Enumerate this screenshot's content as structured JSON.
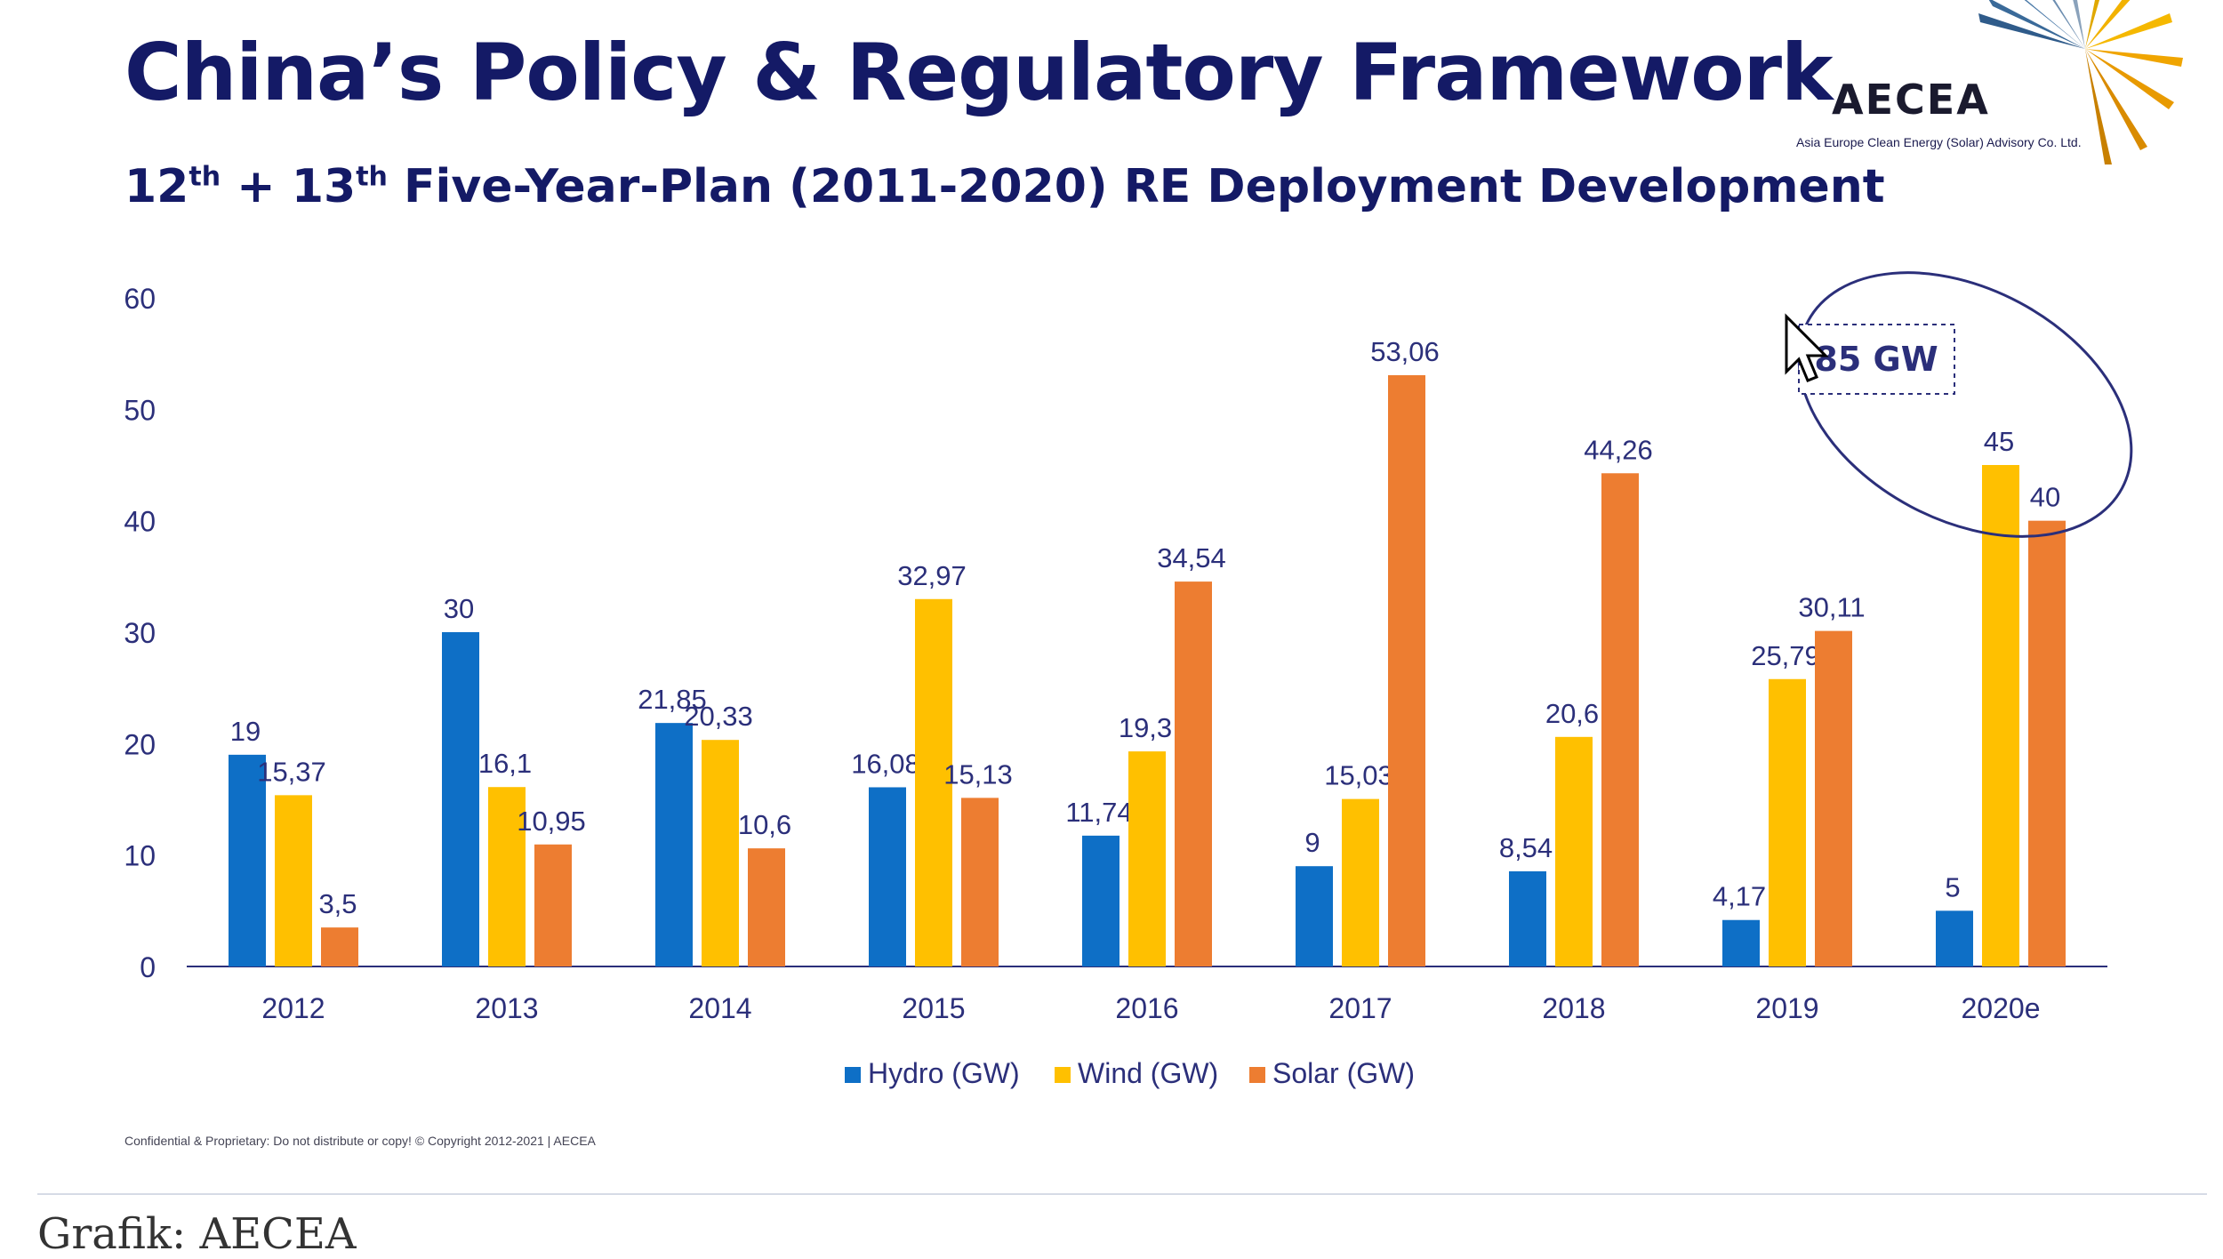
{
  "slide": {
    "title": "China’s Policy & Regulatory Framework",
    "subtitle_parts": [
      "12",
      "th",
      " + 13",
      "th",
      " Five-Year-Plan (2011-2020) RE Deployment Development"
    ],
    "logo_text": "AECEA",
    "logo_subtext": "Asia Europe Clean Energy (Solar) Advisory Co. Ltd.",
    "footer_note": "Confidential & Proprietary: Do not distribute or copy! © Copyright 2012-2021 | AECEA"
  },
  "caption": "Grafik: AECEA",
  "colors": {
    "hydro": "#0e6fc6",
    "wind": "#ffc000",
    "solar": "#ed7d31",
    "title": "#141a66",
    "annotation": "#2b2f7a"
  },
  "chart_data": {
    "type": "bar",
    "categories": [
      "2012",
      "2013",
      "2014",
      "2015",
      "2016",
      "2017",
      "2018",
      "2019",
      "2020e"
    ],
    "series": [
      {
        "name": "Hydro (GW)",
        "values": [
          19,
          30,
          21.85,
          16.08,
          11.74,
          9,
          8.54,
          4.17,
          5
        ],
        "labels": [
          "19",
          "30",
          "21,85",
          "16,08",
          "11,74",
          "9",
          "8,54",
          "4,17",
          "5"
        ]
      },
      {
        "name": "Wind (GW)",
        "values": [
          15.37,
          16.1,
          20.33,
          32.97,
          19.3,
          15.03,
          20.6,
          25.79,
          45
        ],
        "labels": [
          "15,37",
          "16,1",
          "20,33",
          "32,97",
          "19,3",
          "15,03",
          "20,6",
          "25,79",
          "45"
        ]
      },
      {
        "name": "Solar (GW)",
        "values": [
          3.5,
          10.95,
          10.6,
          15.13,
          34.54,
          53.06,
          44.26,
          30.11,
          40
        ],
        "labels": [
          "3,5",
          "10,95",
          "10,6",
          "15,13",
          "34,54",
          "53,06",
          "44,26",
          "30,11",
          "40"
        ]
      }
    ],
    "yticks": [
      "0",
      "10",
      "20",
      "30",
      "40",
      "50",
      "60"
    ],
    "ylim": [
      0,
      60
    ],
    "legend": "bottom",
    "grid": false,
    "annotation": {
      "text": "85 GW",
      "category": "2020e"
    }
  }
}
